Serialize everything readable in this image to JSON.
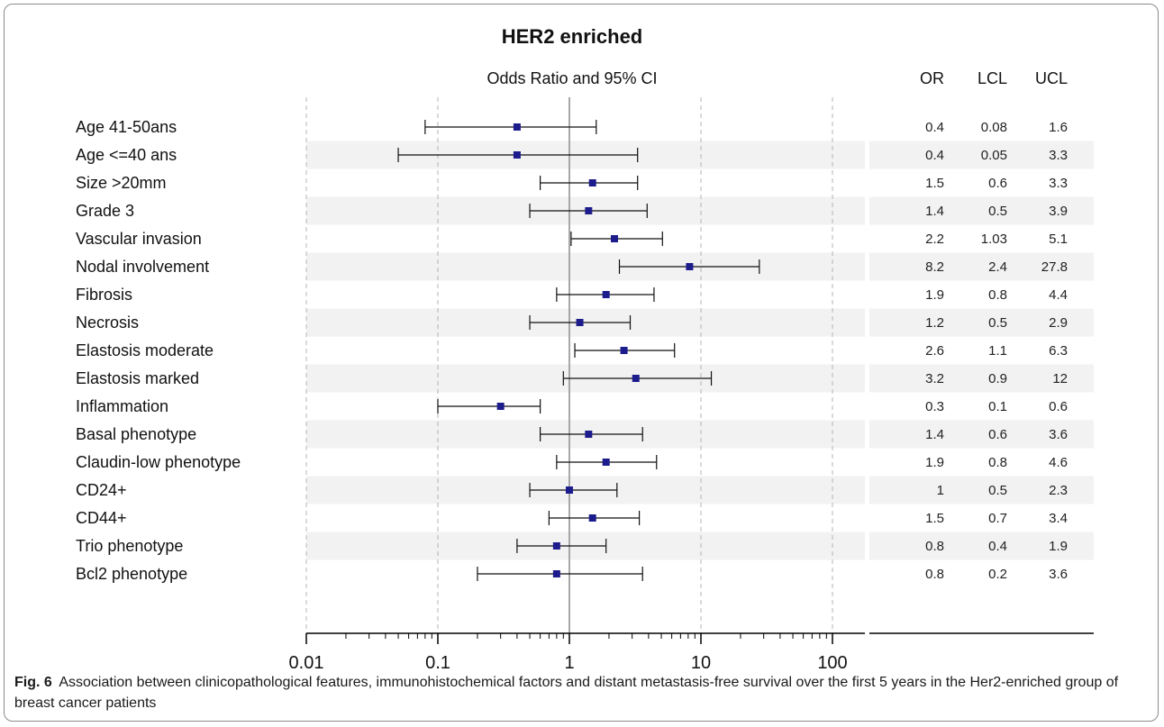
{
  "chart_data": {
    "type": "forest",
    "title": "HER2 enriched",
    "subtitle": "Odds Ratio and 95% CI",
    "x_scale": "log",
    "xlim": [
      0.01,
      150
    ],
    "x_ticks": [
      "0.01",
      "0.1",
      "1",
      "10",
      "100"
    ],
    "reference_line": 1,
    "gridlines": [
      0.01,
      0.1,
      10,
      100
    ],
    "table_headers": [
      "OR",
      "LCL",
      "UCL"
    ],
    "rows": [
      {
        "label": "Age 41-50ans",
        "or": "0.4",
        "lcl": "0.08",
        "ucl": "1.6"
      },
      {
        "label": "Age <=40 ans",
        "or": "0.4",
        "lcl": "0.05",
        "ucl": "3.3"
      },
      {
        "label": "Size >20mm",
        "or": "1.5",
        "lcl": "0.6",
        "ucl": "3.3"
      },
      {
        "label": "Grade 3",
        "or": "1.4",
        "lcl": "0.5",
        "ucl": "3.9"
      },
      {
        "label": "Vascular invasion",
        "or": "2.2",
        "lcl": "1.03",
        "ucl": "5.1"
      },
      {
        "label": "Nodal involvement",
        "or": "8.2",
        "lcl": "2.4",
        "ucl": "27.8"
      },
      {
        "label": "Fibrosis",
        "or": "1.9",
        "lcl": "0.8",
        "ucl": "4.4"
      },
      {
        "label": "Necrosis",
        "or": "1.2",
        "lcl": "0.5",
        "ucl": "2.9"
      },
      {
        "label": "Elastosis moderate",
        "or": "2.6",
        "lcl": "1.1",
        "ucl": "6.3"
      },
      {
        "label": "Elastosis marked",
        "or": "3.2",
        "lcl": "0.9",
        "ucl": "12"
      },
      {
        "label": "Inflammation",
        "or": "0.3",
        "lcl": "0.1",
        "ucl": "0.6"
      },
      {
        "label": "Basal phenotype",
        "or": "1.4",
        "lcl": "0.6",
        "ucl": "3.6"
      },
      {
        "label": "Claudin-low phenotype",
        "or": "1.9",
        "lcl": "0.8",
        "ucl": "4.6"
      },
      {
        "label": "CD24+",
        "or": "1",
        "lcl": "0.5",
        "ucl": "2.3"
      },
      {
        "label": "CD44+",
        "or": "1.5",
        "lcl": "0.7",
        "ucl": "3.4"
      },
      {
        "label": "Trio phenotype",
        "or": "0.8",
        "lcl": "0.4",
        "ucl": "1.9"
      },
      {
        "label": "Bcl2 phenotype",
        "or": "0.8",
        "lcl": "0.2",
        "ucl": "3.6"
      }
    ],
    "colors": {
      "marker": "#1c1c8c",
      "band": "#f2f2f2",
      "grid": "#b4b4b4",
      "ref_line": "#8c8c8c",
      "axis": "#000000"
    }
  },
  "caption": {
    "label": "Fig. 6",
    "text": "Association between clinicopathological features, immunohistochemical factors and distant metastasis-free survival over the first 5 years in the Her2-enriched group of breast cancer patients"
  }
}
